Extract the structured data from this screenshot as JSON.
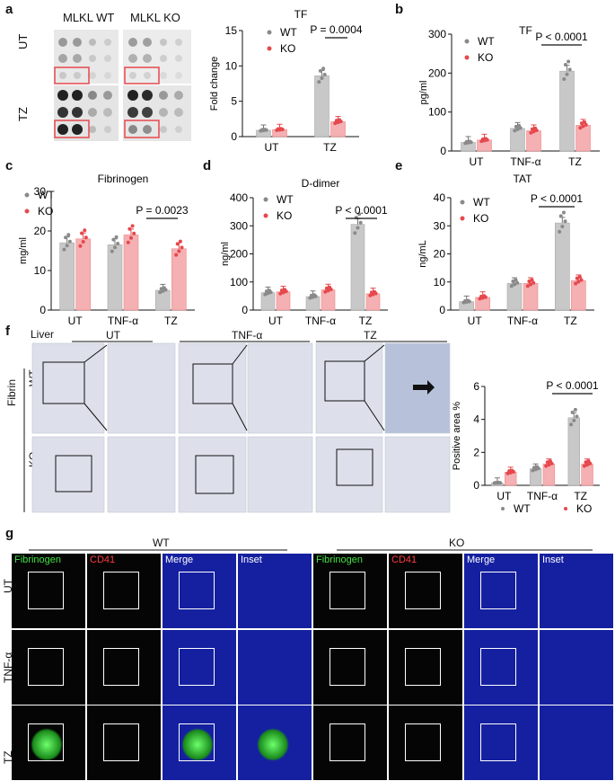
{
  "panel_labels": {
    "a": "a",
    "b": "b",
    "c": "c",
    "d": "d",
    "e": "e",
    "f": "f",
    "g": "g"
  },
  "blot": {
    "col_wt": "MLKL WT",
    "col_ko": "MLKL KO",
    "row_ut": "UT",
    "row_tz": "TZ"
  },
  "colors": {
    "wt": "#c8c8c8",
    "ko": "#f4b0b2",
    "wt_dot": "#8a8a8a",
    "ko_dot": "#e5484d"
  },
  "legend": {
    "wt": "WT",
    "ko": "KO"
  },
  "chart_data": [
    {
      "id": "a_tf",
      "type": "bar",
      "title": "TF",
      "ylabel": "Fold change",
      "categories": [
        "UT",
        "TZ"
      ],
      "ylim": [
        0,
        15
      ],
      "yticks": [
        0,
        5,
        10,
        15
      ],
      "series": [
        {
          "name": "WT",
          "values": [
            0.9,
            8.6
          ]
        },
        {
          "name": "KO",
          "values": [
            1.0,
            2.1
          ]
        }
      ],
      "annotation": "P = 0.0004"
    },
    {
      "id": "b_tf",
      "type": "bar",
      "title": "TF",
      "ylabel": "pg/ml",
      "categories": [
        "UT",
        "TNF-α",
        "TZ"
      ],
      "ylim": [
        0,
        300
      ],
      "yticks": [
        0,
        100,
        200,
        300
      ],
      "series": [
        {
          "name": "WT",
          "values": [
            22,
            58,
            205
          ]
        },
        {
          "name": "KO",
          "values": [
            28,
            52,
            66
          ]
        }
      ],
      "annotation": "P < 0.0001"
    },
    {
      "id": "c_fib",
      "type": "bar",
      "title": "Fibrinogen",
      "ylabel": "mg/ml",
      "categories": [
        "UT",
        "TNF-α",
        "TZ"
      ],
      "ylim": [
        0,
        30
      ],
      "yticks": [
        0,
        10,
        20,
        30
      ],
      "series": [
        {
          "name": "WT",
          "values": [
            17,
            16.5,
            5
          ]
        },
        {
          "name": "KO",
          "values": [
            18,
            19,
            15.5
          ]
        }
      ],
      "annotation": "P = 0.0023"
    },
    {
      "id": "d_dd",
      "type": "bar",
      "title": "D-dimer",
      "ylabel": "ng/ml",
      "categories": [
        "UT",
        "TNF-α",
        "TZ"
      ],
      "ylim": [
        0,
        400
      ],
      "yticks": [
        0,
        100,
        200,
        300,
        400
      ],
      "series": [
        {
          "name": "WT",
          "values": [
            62,
            48,
            305
          ]
        },
        {
          "name": "KO",
          "values": [
            65,
            72,
            58
          ]
        }
      ],
      "annotation": "P < 0.0001"
    },
    {
      "id": "e_tat",
      "type": "bar",
      "title": "TAT",
      "ylabel": "ng/mL",
      "categories": [
        "UT",
        "TNF-α",
        "TZ"
      ],
      "ylim": [
        0,
        40
      ],
      "yticks": [
        0,
        10,
        20,
        30,
        40
      ],
      "series": [
        {
          "name": "WT",
          "values": [
            3,
            9.5,
            31
          ]
        },
        {
          "name": "KO",
          "values": [
            4.5,
            9.5,
            10.5
          ]
        }
      ],
      "annotation": "P < 0.0001"
    },
    {
      "id": "f_area",
      "type": "bar",
      "title": "",
      "ylabel": "Positive area %",
      "categories": [
        "UT",
        "TNF-α",
        "TZ"
      ],
      "ylim": [
        0,
        6
      ],
      "yticks": [
        0,
        2,
        4,
        6
      ],
      "series": [
        {
          "name": "WT",
          "values": [
            0.15,
            1.0,
            4.1
          ]
        },
        {
          "name": "KO",
          "values": [
            0.8,
            1.3,
            1.3
          ]
        }
      ],
      "annotation": "P < 0.0001"
    }
  ],
  "liver": {
    "title": "Liver",
    "cols": [
      "UT",
      "TNF-α",
      "TZ"
    ],
    "rows": [
      "WT",
      "KO"
    ],
    "stain": "Fibrin"
  },
  "if": {
    "groups": [
      "WT",
      "KO"
    ],
    "channels": [
      "Fibrinogen",
      "CD41",
      "Merge",
      "Inset"
    ],
    "rows": [
      "UT",
      "TNF-α",
      "TZ"
    ]
  }
}
